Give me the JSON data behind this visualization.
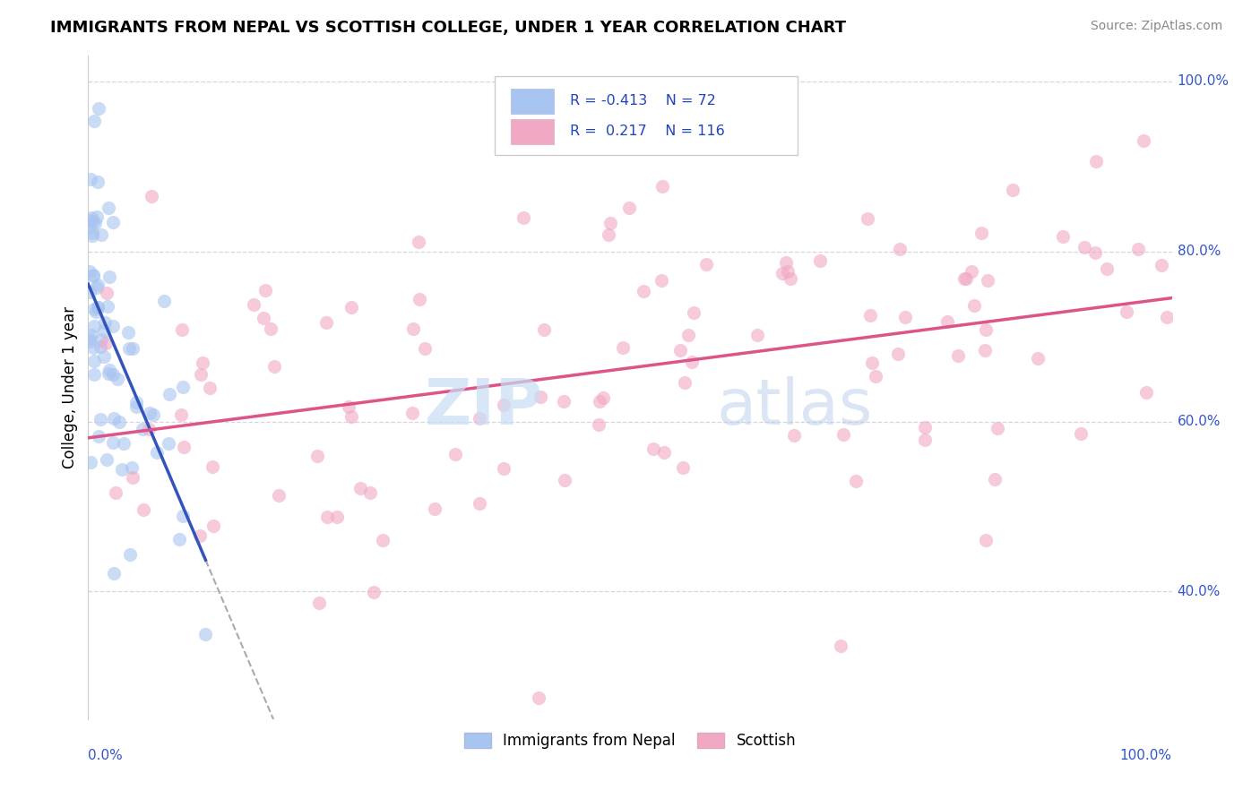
{
  "title": "IMMIGRANTS FROM NEPAL VS SCOTTISH COLLEGE, UNDER 1 YEAR CORRELATION CHART",
  "source": "Source: ZipAtlas.com",
  "ylabel": "College, Under 1 year",
  "legend_label1": "Immigrants from Nepal",
  "legend_label2": "Scottish",
  "r1": "-0.413",
  "n1": "72",
  "r2": "0.217",
  "n2": "116",
  "color_nepal": "#a8c4f0",
  "color_scottish": "#f0a8c4",
  "color_nepal_line": "#3355bb",
  "color_scottish_line": "#dd5588",
  "color_dashed": "#aaaaaa",
  "watermark_zip": "ZIP",
  "watermark_atlas": "atlas",
  "xmin": 0.0,
  "xmax": 100.0,
  "ymin": 25.0,
  "ymax": 103.0,
  "nepal_seed": 42,
  "scottish_seed": 99
}
